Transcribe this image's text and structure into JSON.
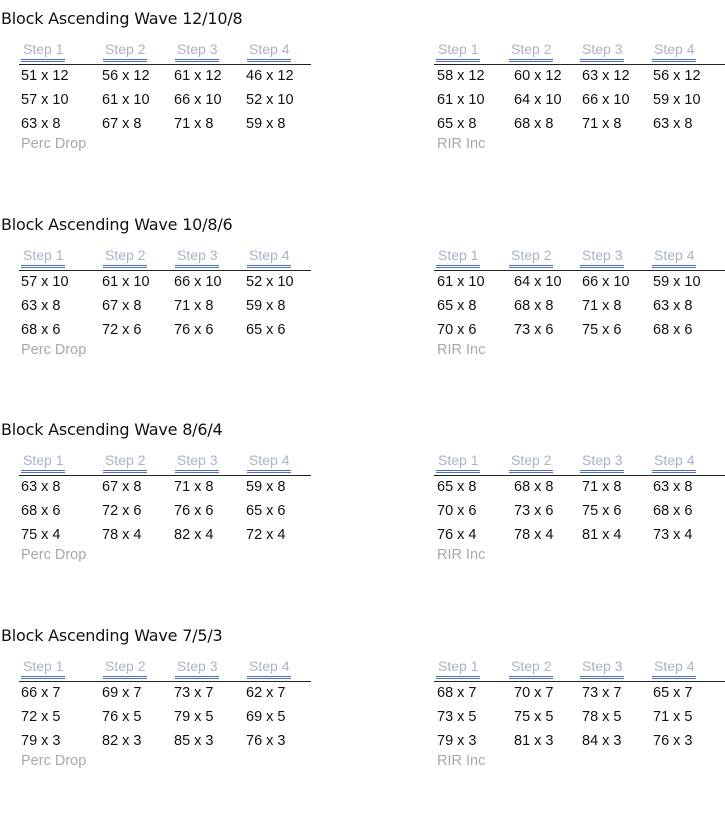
{
  "blocks": [
    {
      "title": "Block Ascending Wave 12/10/8",
      "headers": [
        "Step 1",
        "Step 2",
        "Step 3",
        "Step 4"
      ],
      "left": {
        "rows": [
          [
            "51 x 12",
            "56 x 12",
            "61 x 12",
            "46 x 12"
          ],
          [
            "57 x 10",
            "61 x 10",
            "66 x 10",
            "52 x 10"
          ],
          [
            "63 x 8",
            "67 x 8",
            "71 x 8",
            "59 x 8"
          ]
        ],
        "footer": "Perc Drop"
      },
      "right": {
        "rows": [
          [
            "58 x 12",
            "60 x 12",
            "63 x 12",
            "56 x 12"
          ],
          [
            "61 x 10",
            "64 x 10",
            "66 x 10",
            "59 x 10"
          ],
          [
            "65 x 8",
            "68 x 8",
            "71 x 8",
            "63 x 8"
          ]
        ],
        "footer": "RIR Inc"
      }
    },
    {
      "title": "Block Ascending Wave 10/8/6",
      "headers": [
        "Step 1",
        "Step 2",
        "Step 3",
        "Step 4"
      ],
      "left": {
        "rows": [
          [
            "57 x 10",
            "61 x 10",
            "66 x 10",
            "52 x 10"
          ],
          [
            "63 x 8",
            "67 x 8",
            "71 x 8",
            "59 x 8"
          ],
          [
            "68 x 6",
            "72 x 6",
            "76 x 6",
            "65 x 6"
          ]
        ],
        "footer": "Perc Drop"
      },
      "right": {
        "rows": [
          [
            "61 x 10",
            "64 x 10",
            "66 x 10",
            "59 x 10"
          ],
          [
            "65 x 8",
            "68 x 8",
            "71 x 8",
            "63 x 8"
          ],
          [
            "70 x 6",
            "73 x 6",
            "75 x 6",
            "68 x 6"
          ]
        ],
        "footer": "RIR Inc"
      }
    },
    {
      "title": "Block Ascending Wave 8/6/4",
      "headers": [
        "Step 1",
        "Step 2",
        "Step 3",
        "Step 4"
      ],
      "left": {
        "rows": [
          [
            "63 x 8",
            "67 x 8",
            "71 x 8",
            "59 x 8"
          ],
          [
            "68 x 6",
            "72 x 6",
            "76 x 6",
            "65 x 6"
          ],
          [
            "75 x 4",
            "78 x 4",
            "82 x 4",
            "72 x 4"
          ]
        ],
        "footer": "Perc Drop"
      },
      "right": {
        "rows": [
          [
            "65 x 8",
            "68 x 8",
            "71 x 8",
            "63 x 8"
          ],
          [
            "70 x 6",
            "73 x 6",
            "75 x 6",
            "68 x 6"
          ],
          [
            "76 x 4",
            "78 x 4",
            "81 x 4",
            "73 x 4"
          ]
        ],
        "footer": "RIR Inc"
      }
    },
    {
      "title": "Block Ascending Wave 7/5/3",
      "headers": [
        "Step 1",
        "Step 2",
        "Step 3",
        "Step 4"
      ],
      "left": {
        "rows": [
          [
            "66 x 7",
            "69 x 7",
            "73 x 7",
            "62 x 7"
          ],
          [
            "72 x 5",
            "76 x 5",
            "79 x 5",
            "69 x 5"
          ],
          [
            "79 x 3",
            "82 x 3",
            "85 x 3",
            "76 x 3"
          ]
        ],
        "footer": "Perc Drop"
      },
      "right": {
        "rows": [
          [
            "68 x 7",
            "70 x 7",
            "73 x 7",
            "65 x 7"
          ],
          [
            "73 x 5",
            "75 x 5",
            "78 x 5",
            "71 x 5"
          ],
          [
            "79 x 3",
            "81 x 3",
            "84 x 3",
            "76 x 3"
          ]
        ],
        "footer": "RIR Inc"
      }
    }
  ]
}
